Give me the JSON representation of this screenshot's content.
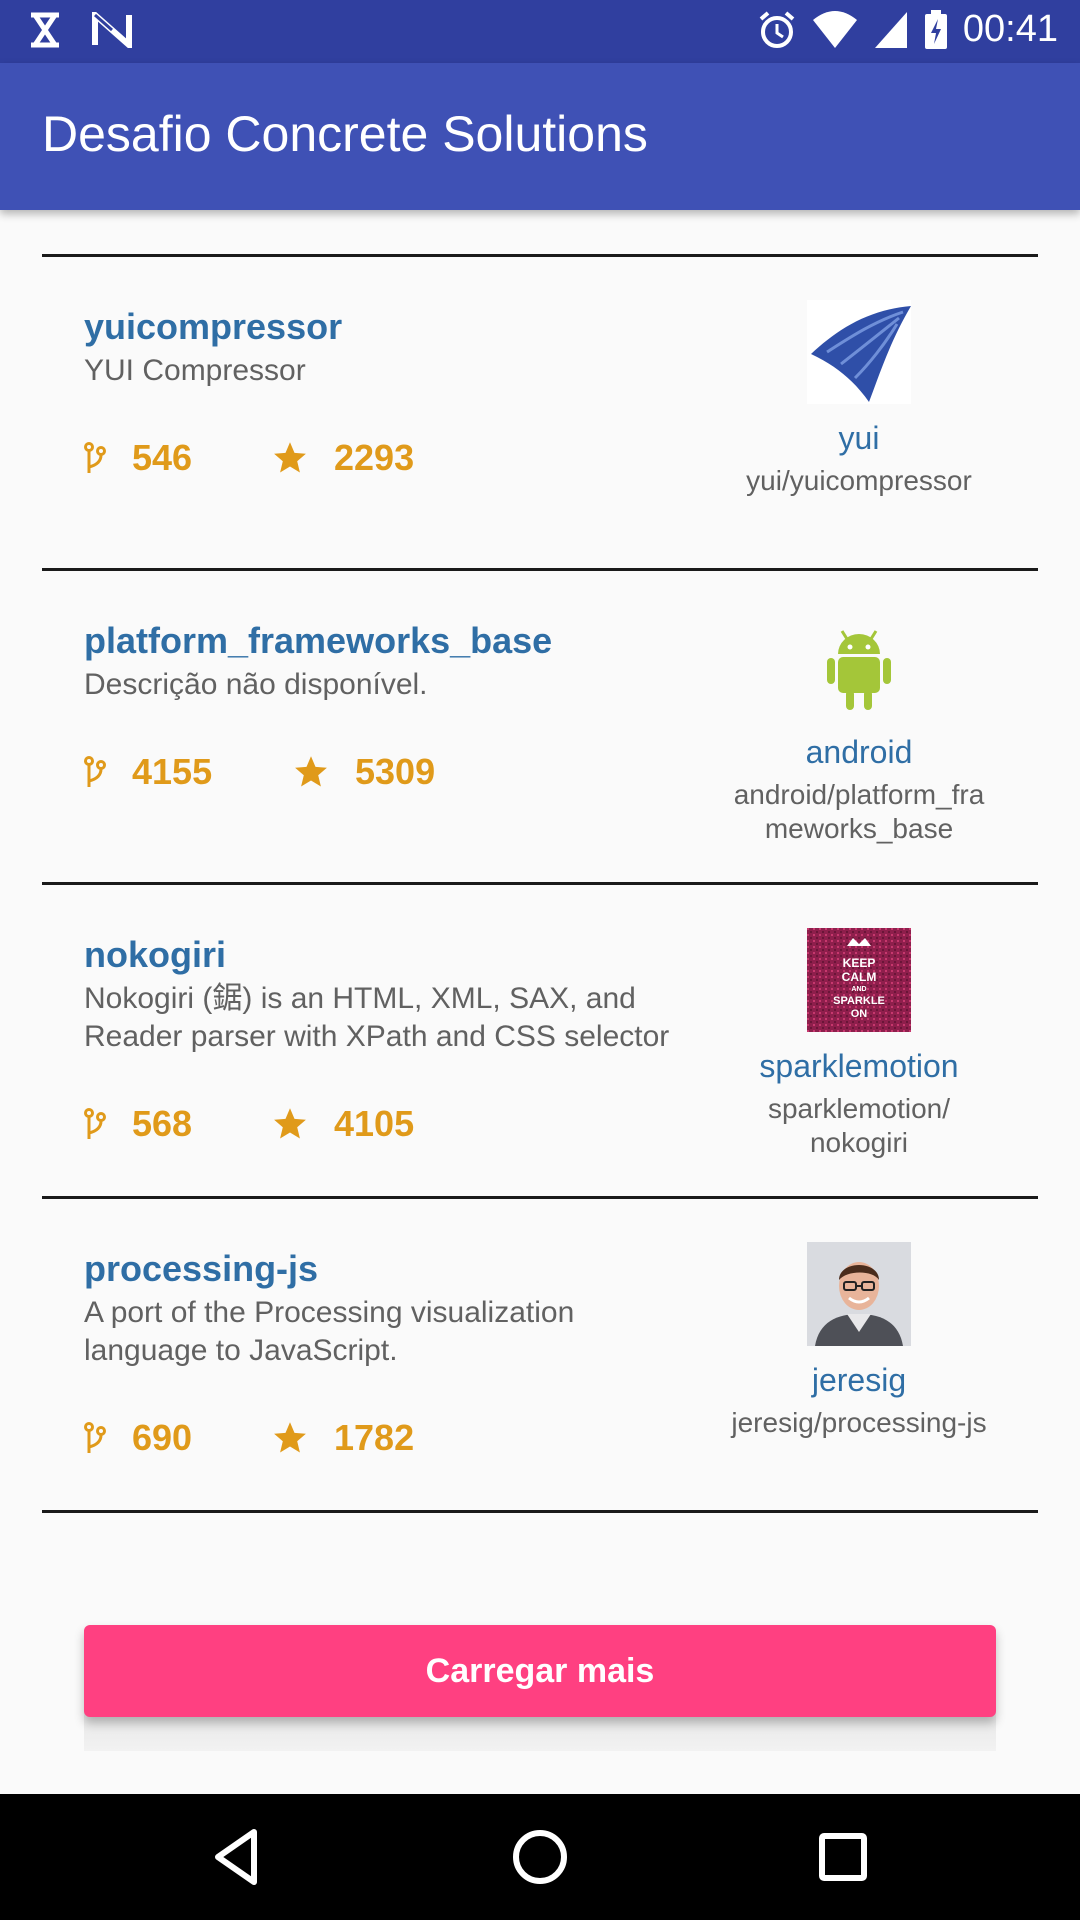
{
  "status_bar": {
    "time": "00:41",
    "icons_left": [
      "hourglass-icon",
      "n-icon"
    ],
    "icons_right": [
      "alarm-icon",
      "wifi-icon",
      "signal-icon",
      "battery-charging-icon"
    ]
  },
  "app_bar": {
    "title": "Desafio Concrete Solutions",
    "color": "#3f51b5",
    "status_color": "#303f9f"
  },
  "repos": [
    {
      "name": "yuicompressor",
      "description": "YUI Compressor",
      "forks": "546",
      "stars": "2293",
      "owner": "yui",
      "full_name": "yui/yuicompressor",
      "avatar_icon": "yui-logo-icon"
    },
    {
      "name": "platform_frameworks_base",
      "description": "Descrição não disponível.",
      "forks": "4155",
      "stars": "5309",
      "owner": "android",
      "full_name": "android/platform_fra meworks_base",
      "avatar_icon": "android-logo-icon"
    },
    {
      "name": "nokogiri",
      "description": "Nokogiri (鋸) is an HTML, XML, SAX, and Reader parser with XPath and CSS selector",
      "forks": "568",
      "stars": "4105",
      "owner": "sparklemotion",
      "full_name": "sparklemotion/ nokogiri",
      "avatar_icon": "keep-calm-sparkle-avatar",
      "avatar_text": [
        "KEEP",
        "CALM",
        "AND",
        "SPARKLE",
        "ON"
      ]
    },
    {
      "name": "processing-js",
      "description": "A port of the Processing visualization language to JavaScript.",
      "forks": "690",
      "stars": "1782",
      "owner": "jeresig",
      "full_name": "jeresig/processing-js",
      "avatar_icon": "person-photo-avatar"
    }
  ],
  "load_more": {
    "label": "Carregar mais",
    "color": "#ff4081"
  },
  "colors": {
    "repo_name": "#2f6ea5",
    "stat": "#e09a1a",
    "description": "#616161"
  },
  "nav_bar": {
    "icons": [
      "back-triangle-icon",
      "home-circle-icon",
      "recents-square-icon"
    ]
  }
}
